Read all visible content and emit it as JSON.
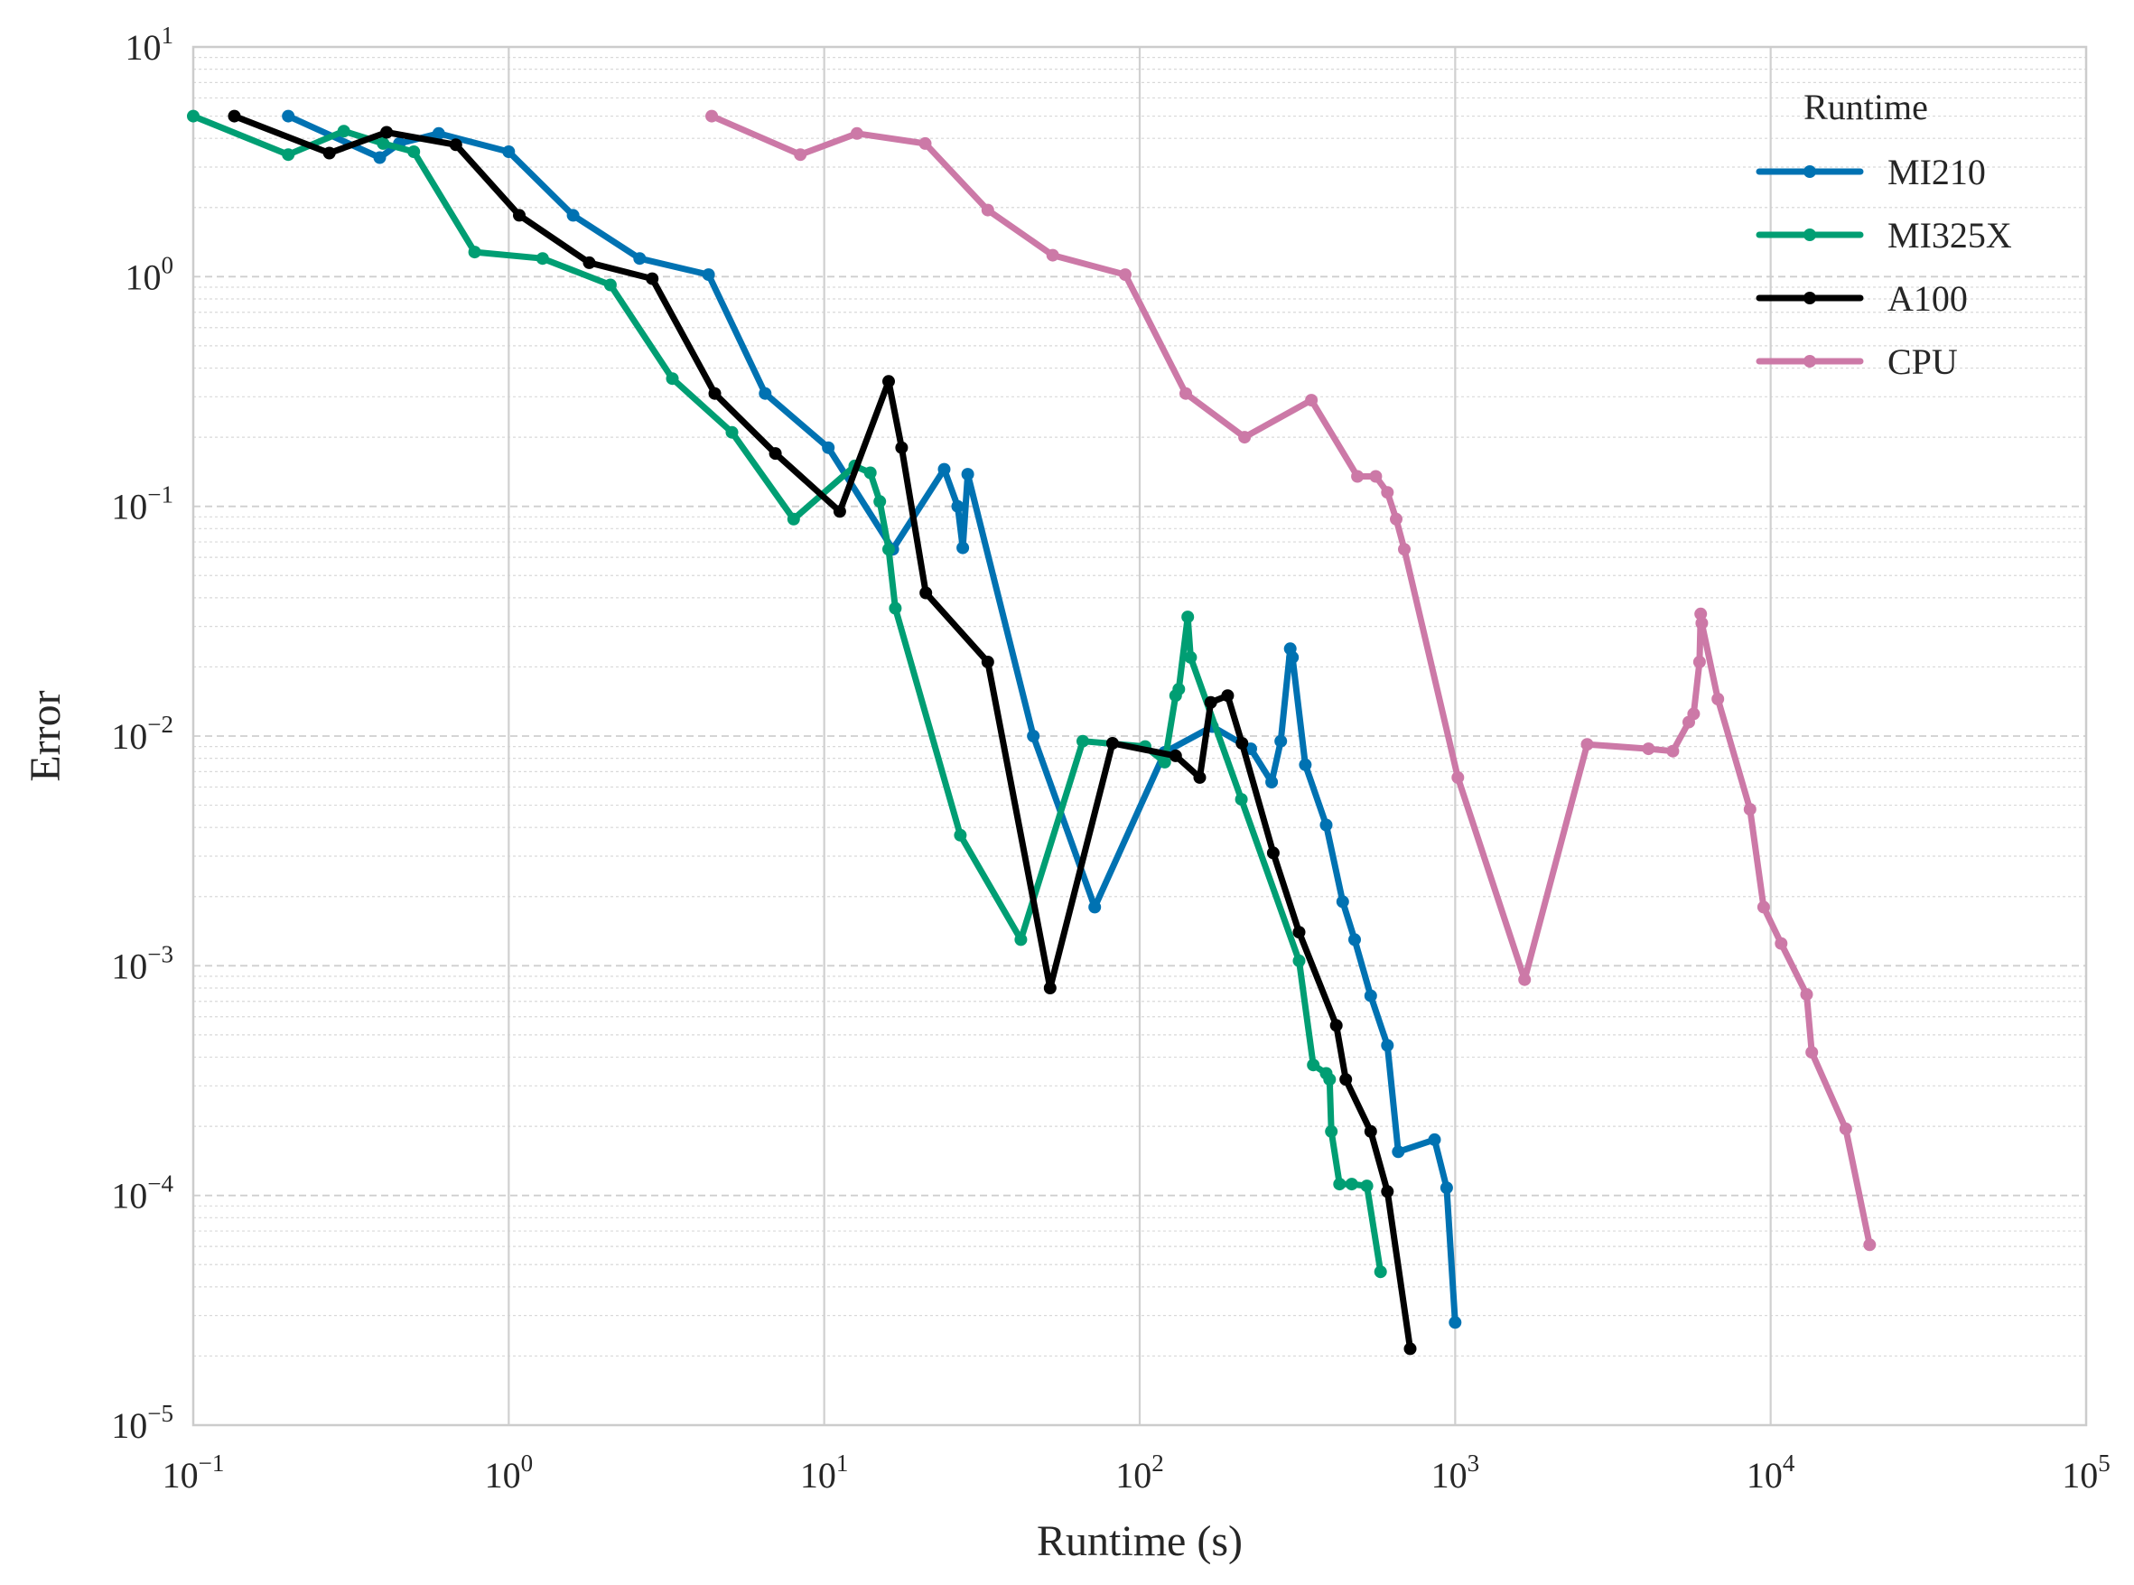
{
  "chart_data": {
    "type": "line",
    "title": "",
    "xlabel": "Runtime (s)",
    "ylabel": "Error",
    "xscale": "log",
    "yscale": "log",
    "xlim": [
      0.1,
      100000
    ],
    "ylim": [
      1e-05,
      10
    ],
    "x_ticks": [
      {
        "base": "10",
        "exp": "−1",
        "value": 0.1
      },
      {
        "base": "10",
        "exp": "0",
        "value": 1
      },
      {
        "base": "10",
        "exp": "1",
        "value": 10
      },
      {
        "base": "10",
        "exp": "2",
        "value": 100
      },
      {
        "base": "10",
        "exp": "3",
        "value": 1000
      },
      {
        "base": "10",
        "exp": "4",
        "value": 10000
      },
      {
        "base": "10",
        "exp": "5",
        "value": 100000
      }
    ],
    "y_ticks": [
      {
        "base": "10",
        "exp": "−5",
        "value": 1e-05
      },
      {
        "base": "10",
        "exp": "−4",
        "value": 0.0001
      },
      {
        "base": "10",
        "exp": "−3",
        "value": 0.001
      },
      {
        "base": "10",
        "exp": "−2",
        "value": 0.01
      },
      {
        "base": "10",
        "exp": "−1",
        "value": 0.1
      },
      {
        "base": "10",
        "exp": "0",
        "value": 1
      },
      {
        "base": "10",
        "exp": "1",
        "value": 10
      }
    ],
    "grid": true,
    "legend": {
      "title": "Runtime",
      "placement": "top-right"
    },
    "series": [
      {
        "name": "MI210",
        "color": "#0072b2",
        "points": [
          [
            0.2,
            5.0
          ],
          [
            0.39,
            3.3
          ],
          [
            0.45,
            3.8
          ],
          [
            0.6,
            4.2
          ],
          [
            1.0,
            3.5
          ],
          [
            1.6,
            1.85
          ],
          [
            2.6,
            1.2
          ],
          [
            4.3,
            1.02
          ],
          [
            6.5,
            0.31
          ],
          [
            10.3,
            0.18
          ],
          [
            16.5,
            0.065
          ],
          [
            24.0,
            0.145
          ],
          [
            26.5,
            0.1
          ],
          [
            27.5,
            0.066
          ],
          [
            28.5,
            0.138
          ],
          [
            46.0,
            0.01
          ],
          [
            72.0,
            0.0018
          ],
          [
            120.0,
            0.0085
          ],
          [
            170.0,
            0.011
          ],
          [
            225.0,
            0.0088
          ],
          [
            262.0,
            0.0063
          ],
          [
            280.0,
            0.0095
          ],
          [
            300.0,
            0.024
          ],
          [
            305.0,
            0.022
          ],
          [
            335.0,
            0.0075
          ],
          [
            390.0,
            0.0041
          ],
          [
            440.0,
            0.0019
          ],
          [
            480.0,
            0.0013
          ],
          [
            540.0,
            0.00074
          ],
          [
            610.0,
            0.00045
          ],
          [
            660.0,
            0.000155
          ],
          [
            860.0,
            0.000175
          ],
          [
            940.0,
            0.000108
          ],
          [
            1000.0,
            2.8e-05
          ]
        ]
      },
      {
        "name": "MI325X",
        "color": "#009e73",
        "points": [
          [
            0.1,
            5.0
          ],
          [
            0.2,
            3.4
          ],
          [
            0.3,
            4.3
          ],
          [
            0.4,
            3.8
          ],
          [
            0.5,
            3.5
          ],
          [
            0.78,
            1.28
          ],
          [
            1.28,
            1.2
          ],
          [
            2.1,
            0.92
          ],
          [
            3.3,
            0.36
          ],
          [
            5.1,
            0.21
          ],
          [
            8.0,
            0.088
          ],
          [
            12.5,
            0.15
          ],
          [
            14.0,
            0.14
          ],
          [
            15.0,
            0.105
          ],
          [
            16.0,
            0.065
          ],
          [
            16.8,
            0.036
          ],
          [
            27.0,
            0.0037
          ],
          [
            42.0,
            0.0013
          ],
          [
            66.0,
            0.0095
          ],
          [
            104.0,
            0.009
          ],
          [
            120.0,
            0.0077
          ],
          [
            130.0,
            0.015
          ],
          [
            133.0,
            0.016
          ],
          [
            142.0,
            0.033
          ],
          [
            145.0,
            0.022
          ],
          [
            210.0,
            0.0053
          ],
          [
            320.0,
            0.00105
          ],
          [
            355.0,
            0.00037
          ],
          [
            390.0,
            0.00034
          ],
          [
            400.0,
            0.00032
          ],
          [
            405.0,
            0.00019
          ],
          [
            430.0,
            0.000112
          ],
          [
            470.0,
            0.000112
          ],
          [
            525.0,
            0.00011
          ],
          [
            580.0,
            4.65e-05
          ]
        ]
      },
      {
        "name": "A100",
        "color": "#000000",
        "points": [
          [
            0.135,
            5.0
          ],
          [
            0.27,
            3.45
          ],
          [
            0.41,
            4.25
          ],
          [
            0.68,
            3.75
          ],
          [
            1.08,
            1.85
          ],
          [
            1.8,
            1.15
          ],
          [
            2.85,
            0.98
          ],
          [
            4.5,
            0.31
          ],
          [
            7.0,
            0.17
          ],
          [
            11.2,
            0.095
          ],
          [
            16.0,
            0.35
          ],
          [
            17.6,
            0.18
          ],
          [
            21.0,
            0.042
          ],
          [
            33.0,
            0.021
          ],
          [
            52.0,
            0.0008
          ],
          [
            82.0,
            0.0093
          ],
          [
            130.0,
            0.0082
          ],
          [
            155.0,
            0.0066
          ],
          [
            168.0,
            0.014
          ],
          [
            190.0,
            0.015
          ],
          [
            211.0,
            0.0093
          ],
          [
            265.0,
            0.0031
          ],
          [
            320.0,
            0.0014
          ],
          [
            420.0,
            0.00055
          ],
          [
            450.0,
            0.00032
          ],
          [
            540.0,
            0.00019
          ],
          [
            610.0,
            0.000104
          ],
          [
            720.0,
            2.15e-05
          ]
        ]
      },
      {
        "name": "CPU",
        "color": "#cc79a7",
        "points": [
          [
            4.4,
            5.0
          ],
          [
            8.4,
            3.4
          ],
          [
            12.7,
            4.2
          ],
          [
            20.9,
            3.8
          ],
          [
            33.0,
            1.95
          ],
          [
            53.0,
            1.24
          ],
          [
            90.0,
            1.02
          ],
          [
            140.0,
            0.31
          ],
          [
            215.0,
            0.2
          ],
          [
            350.0,
            0.29
          ],
          [
            490.0,
            0.135
          ],
          [
            560.0,
            0.135
          ],
          [
            610.0,
            0.115
          ],
          [
            650.0,
            0.088
          ],
          [
            690.0,
            0.065
          ],
          [
            1020.0,
            0.0066
          ],
          [
            1660.0,
            0.00087
          ],
          [
            2620.0,
            0.0092
          ],
          [
            4100.0,
            0.0088
          ],
          [
            4900.0,
            0.0086
          ],
          [
            5500.0,
            0.0115
          ],
          [
            5700.0,
            0.0125
          ],
          [
            5950.0,
            0.021
          ],
          [
            6000.0,
            0.034
          ],
          [
            6050.0,
            0.031
          ],
          [
            6800.0,
            0.0145
          ],
          [
            8600.0,
            0.0048
          ],
          [
            9500.0,
            0.0018
          ],
          [
            10800.0,
            0.00125
          ],
          [
            13000.0,
            0.00075
          ],
          [
            13500.0,
            0.00042
          ],
          [
            17300.0,
            0.000195
          ],
          [
            20600.0,
            6.1e-05
          ]
        ]
      }
    ]
  }
}
